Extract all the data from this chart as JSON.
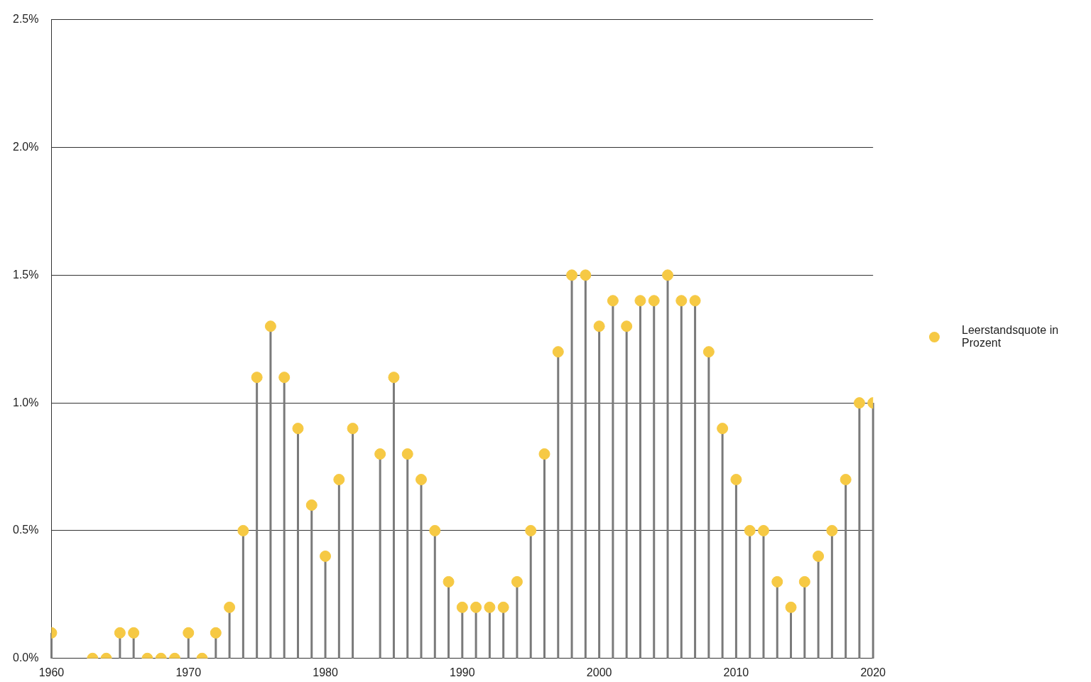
{
  "chart_data": {
    "type": "lollipop",
    "x": [
      1960,
      1963,
      1964,
      1965,
      1966,
      1967,
      1968,
      1969,
      1970,
      1971,
      1972,
      1973,
      1974,
      1975,
      1976,
      1977,
      1978,
      1979,
      1980,
      1981,
      1982,
      1984,
      1985,
      1986,
      1987,
      1988,
      1989,
      1990,
      1991,
      1992,
      1993,
      1994,
      1995,
      1996,
      1997,
      1998,
      1999,
      2000,
      2001,
      2002,
      2003,
      2004,
      2005,
      2006,
      2007,
      2008,
      2009,
      2010,
      2011,
      2012,
      2013,
      2014,
      2015,
      2016,
      2017,
      2018,
      2019,
      2020
    ],
    "series": [
      {
        "name": "Leerstandsquote in Prozent",
        "color": "#f6c944",
        "values": [
          0.1,
          0,
          0,
          0.1,
          0.1,
          0,
          0,
          0,
          0.1,
          0,
          0.1,
          0.2,
          0.5,
          1.1,
          1.3,
          1.1,
          0.9,
          0.6,
          0.4,
          0.7,
          0.9,
          0.8,
          1.1,
          0.8,
          0.7,
          0.5,
          0.3,
          0.2,
          0.2,
          0.2,
          0.2,
          0.3,
          0.5,
          0.8,
          1.2,
          1.5,
          1.5,
          1.3,
          1.4,
          1.3,
          1.4,
          1.4,
          1.5,
          1.4,
          1.4,
          1.2,
          0.9,
          0.7,
          0.5,
          0.5,
          0.3,
          0.2,
          0.3,
          0.4,
          0.5,
          0.7,
          1.0,
          1.0
        ]
      }
    ],
    "xlim": [
      1960,
      2020
    ],
    "xticks": [
      1960,
      1970,
      1980,
      1990,
      2000,
      2010,
      2020
    ],
    "ylim": [
      0,
      2.5
    ],
    "yticks": [
      {
        "value": 0,
        "label": "0.0%"
      },
      {
        "value": 0.5,
        "label": "0.5%"
      },
      {
        "value": 1,
        "label": "1.0%"
      },
      {
        "value": 1.5,
        "label": "1.5%"
      },
      {
        "value": 2,
        "label": "2.0%"
      },
      {
        "value": 2.5,
        "label": "2.5%"
      }
    ],
    "grid": "y",
    "legend": "right",
    "marker": "circle"
  }
}
